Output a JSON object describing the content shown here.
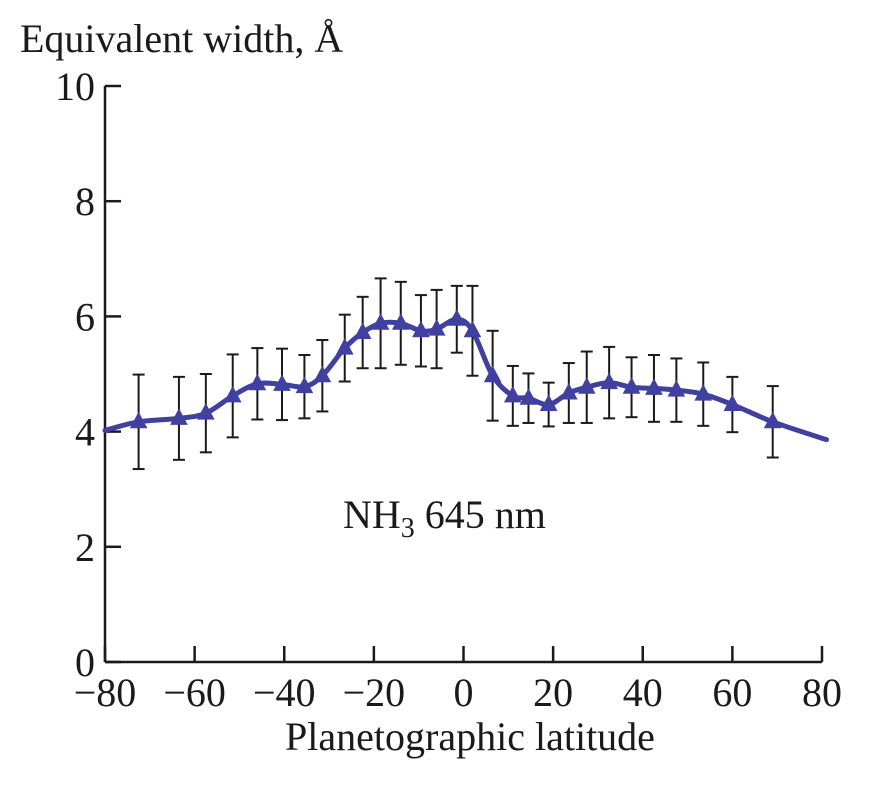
{
  "chart_data": {
    "type": "line",
    "title": "",
    "xlabel": "Planetographic latitude",
    "ylabel": "Equivalent width, Å",
    "xlim": [
      -80,
      80
    ],
    "ylim": [
      0,
      10
    ],
    "x_ticks": [
      -80,
      -60,
      -40,
      -20,
      0,
      20,
      40,
      60,
      80
    ],
    "x_tick_labels": [
      "−80",
      "−60",
      "−40",
      "−20",
      "0",
      "20",
      "40",
      "60",
      "80"
    ],
    "y_ticks": [
      0,
      2,
      4,
      6,
      8,
      10
    ],
    "y_tick_labels": [
      "0",
      "2",
      "4",
      "6",
      "8",
      "10"
    ],
    "grid": false,
    "annotation": {
      "molecule": "NH",
      "subscript": "3",
      "wavelength": "645 nm"
    },
    "colors": {
      "series": "#4040a0",
      "errorbar": "#1a1a1a",
      "axis": "#1a1a1a"
    },
    "series": [
      {
        "marker": "triangle",
        "points": [
          {
            "x": -72.5,
            "y": 4.17,
            "err": 0.82
          },
          {
            "x": -63.5,
            "y": 4.23,
            "err": 0.72
          },
          {
            "x": -57.5,
            "y": 4.32,
            "err": 0.68
          },
          {
            "x": -51.5,
            "y": 4.62,
            "err": 0.72
          },
          {
            "x": -46.0,
            "y": 4.83,
            "err": 0.62
          },
          {
            "x": -40.5,
            "y": 4.82,
            "err": 0.62
          },
          {
            "x": -35.5,
            "y": 4.78,
            "err": 0.55
          },
          {
            "x": -31.5,
            "y": 4.97,
            "err": 0.62
          },
          {
            "x": -26.5,
            "y": 5.45,
            "err": 0.58
          },
          {
            "x": -22.5,
            "y": 5.72,
            "err": 0.62
          },
          {
            "x": -18.5,
            "y": 5.88,
            "err": 0.78
          },
          {
            "x": -14.0,
            "y": 5.88,
            "err": 0.72
          },
          {
            "x": -9.5,
            "y": 5.75,
            "err": 0.62
          },
          {
            "x": -6.0,
            "y": 5.78,
            "err": 0.68
          },
          {
            "x": -1.5,
            "y": 5.95,
            "err": 0.58
          },
          {
            "x": 2.0,
            "y": 5.75,
            "err": 0.78
          },
          {
            "x": 6.5,
            "y": 4.97,
            "err": 0.78
          },
          {
            "x": 11.0,
            "y": 4.62,
            "err": 0.52
          },
          {
            "x": 14.5,
            "y": 4.58,
            "err": 0.43
          },
          {
            "x": 19.0,
            "y": 4.47,
            "err": 0.38
          },
          {
            "x": 23.5,
            "y": 4.67,
            "err": 0.52
          },
          {
            "x": 27.5,
            "y": 4.77,
            "err": 0.62
          },
          {
            "x": 32.5,
            "y": 4.85,
            "err": 0.62
          },
          {
            "x": 37.5,
            "y": 4.77,
            "err": 0.52
          },
          {
            "x": 42.5,
            "y": 4.75,
            "err": 0.58
          },
          {
            "x": 47.5,
            "y": 4.72,
            "err": 0.55
          },
          {
            "x": 53.5,
            "y": 4.65,
            "err": 0.55
          },
          {
            "x": 60.0,
            "y": 4.47,
            "err": 0.48
          },
          {
            "x": 69.0,
            "y": 4.17,
            "err": 0.62
          }
        ],
        "curve_start": {
          "x": -80,
          "y": 4.02
        },
        "curve_end": {
          "x": 81,
          "y": 3.86
        }
      }
    ]
  }
}
